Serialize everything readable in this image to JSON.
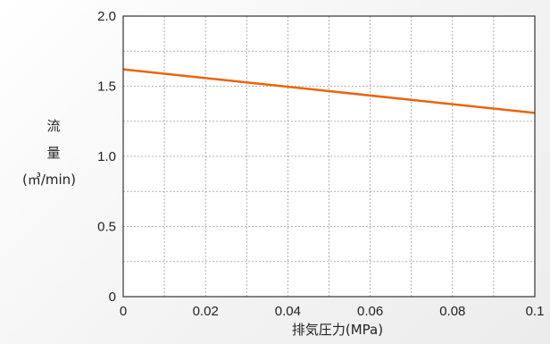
{
  "chart_data": {
    "type": "line",
    "xlabel": "排気圧力(MPa)",
    "ylabel_lines": [
      "流",
      "量",
      "(㎥/min)"
    ],
    "xlim": [
      0,
      0.1
    ],
    "ylim": [
      0,
      2.0
    ],
    "x_ticks": [
      0,
      0.02,
      0.04,
      0.06,
      0.08,
      0.1
    ],
    "x_tick_labels": [
      "0",
      "0.02",
      "0.04",
      "0.06",
      "0.08",
      "0.1"
    ],
    "y_ticks": [
      0,
      0.5,
      1.0,
      1.5,
      2.0
    ],
    "y_tick_labels": [
      "0",
      "0.5",
      "1.0",
      "1.5",
      "2.0"
    ],
    "x_minor_gridlines": [
      0.01,
      0.03,
      0.05,
      0.07,
      0.09
    ],
    "y_minor_gridlines": [
      0.25,
      0.75,
      1.25,
      1.75
    ],
    "grid": true,
    "series": [
      {
        "x": [
          0,
          0.1
        ],
        "y": [
          1.62,
          1.31
        ],
        "color": "#e8640f"
      }
    ]
  }
}
